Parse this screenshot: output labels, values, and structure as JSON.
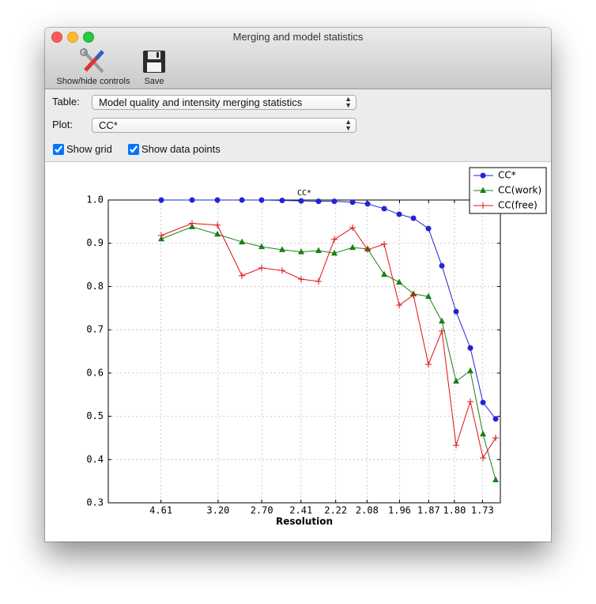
{
  "window": {
    "title": "Merging and model statistics",
    "toolbar": [
      {
        "label": "Show/hide controls"
      },
      {
        "label": "Save"
      }
    ]
  },
  "controls": {
    "table_label": "Table:",
    "table_value": "Model quality and intensity merging statistics",
    "plot_label": "Plot:",
    "plot_value": "CC*",
    "show_grid": {
      "label": "Show grid",
      "checked": true
    },
    "show_points": {
      "label": "Show data points",
      "checked": true
    }
  },
  "chart_data": {
    "type": "line",
    "title": "CC*",
    "xlabel": "Resolution",
    "x": [
      0.0473,
      0.0748,
      0.0974,
      0.1193,
      0.1369,
      0.1552,
      0.1722,
      0.1877,
      0.2018,
      0.2181,
      0.2315,
      0.2463,
      0.2597,
      0.2724,
      0.2858,
      0.2978,
      0.3105,
      0.3232,
      0.3345,
      0.3458
    ],
    "series": [
      {
        "name": "CC*",
        "color": "#2323d6",
        "marker": "circle",
        "values": [
          1.0,
          1.0,
          1.0,
          1.0,
          1.0,
          0.999,
          0.998,
          0.997,
          0.997,
          0.995,
          0.991,
          0.98,
          0.967,
          0.958,
          0.934,
          0.848,
          0.742,
          0.658,
          0.532,
          0.494
        ]
      },
      {
        "name": "CC(work)",
        "color": "#1a7f1a",
        "marker": "triangle",
        "values": [
          0.91,
          0.938,
          0.921,
          0.903,
          0.892,
          0.885,
          0.88,
          0.883,
          0.877,
          0.89,
          0.887,
          0.828,
          0.81,
          0.783,
          0.777,
          0.72,
          0.581,
          0.605,
          0.459,
          0.353
        ]
      },
      {
        "name": "CC(free)",
        "color": "#e01010",
        "marker": "plus",
        "values": [
          0.918,
          0.946,
          0.942,
          0.825,
          0.843,
          0.837,
          0.817,
          0.812,
          0.909,
          0.936,
          0.885,
          0.898,
          0.757,
          0.78,
          0.62,
          0.697,
          0.433,
          0.534,
          0.404,
          0.45
        ]
      }
    ],
    "xlim": [
      0,
      0.35
    ],
    "ylim": [
      0.3,
      1.0
    ],
    "xticks": [
      {
        "value": 0.047,
        "label": "4.61"
      },
      {
        "value": 0.098,
        "label": "3.20"
      },
      {
        "value": 0.137,
        "label": "2.70"
      },
      {
        "value": 0.172,
        "label": "2.41"
      },
      {
        "value": 0.203,
        "label": "2.22"
      },
      {
        "value": 0.231,
        "label": "2.08"
      },
      {
        "value": 0.26,
        "label": "1.96"
      },
      {
        "value": 0.286,
        "label": "1.87"
      },
      {
        "value": 0.309,
        "label": "1.80"
      },
      {
        "value": 0.334,
        "label": "1.73"
      }
    ],
    "yticks": [
      {
        "value": 1.0,
        "label": "1.0"
      },
      0.9,
      0.8,
      0.7,
      0.6,
      0.5,
      0.4,
      0.3
    ],
    "legend": "upper right"
  }
}
